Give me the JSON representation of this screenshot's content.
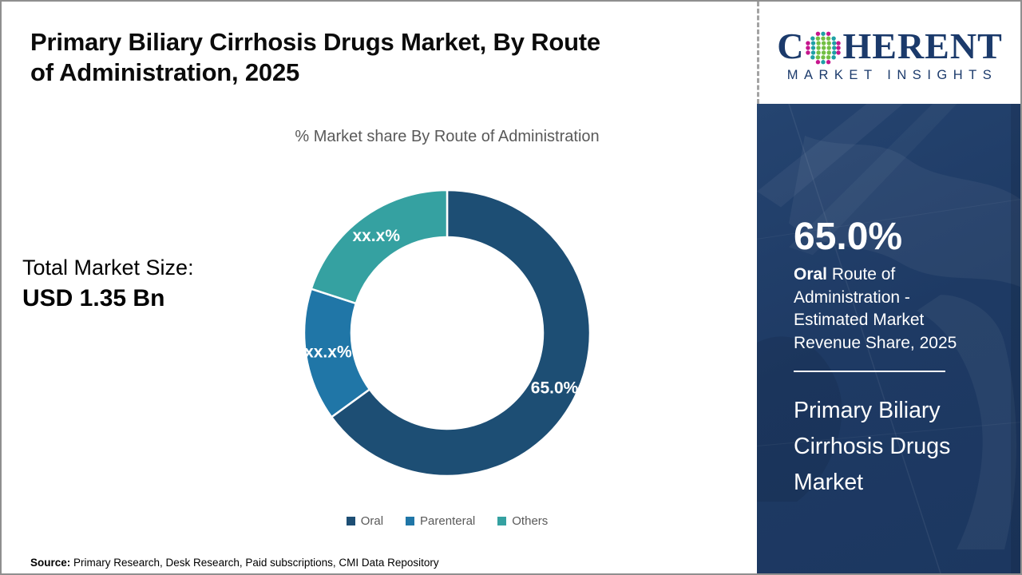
{
  "header": {
    "title_line1": "Primary Biliary Cirrhosis Drugs Market, By Route",
    "title_line2": "of Administration, 2025",
    "subtitle": "% Market share By Route of Administration"
  },
  "total_market": {
    "label": "Total Market Size:",
    "value": "USD 1.35 Bn"
  },
  "chart_data": {
    "type": "pie",
    "subtype": "donut",
    "title": "% Market share By Route of Administration",
    "categories": [
      "Oral",
      "Parenteral",
      "Others"
    ],
    "values": [
      65.0,
      15.0,
      20.0
    ],
    "value_labels": [
      "65.0%",
      "xx.x%",
      "xx.x%"
    ],
    "colors": [
      "#1d4e74",
      "#2076a7",
      "#35a1a1"
    ],
    "start_angle_deg": 0,
    "direction": "clockwise",
    "legend_position": "bottom"
  },
  "sidebar": {
    "logo": {
      "prefix": "C",
      "suffix": "HERENT",
      "tagline": "MARKET INSIGHTS"
    },
    "stat": {
      "value": "65.0%",
      "desc_bold": "Oral",
      "desc_rest": " Route of Administration - Estimated Market Revenue Share, 2025"
    },
    "market_name": "Primary Biliary Cirrhosis Drugs Market"
  },
  "footer": {
    "source_label": "Source:",
    "source_text": " Primary Research, Desk Research, Paid subscriptions, CMI Data Repository"
  },
  "palette": {
    "panel_navy": "#1e3a64",
    "logo_navy": "#1b3a6b",
    "muted_gray": "#595959"
  }
}
